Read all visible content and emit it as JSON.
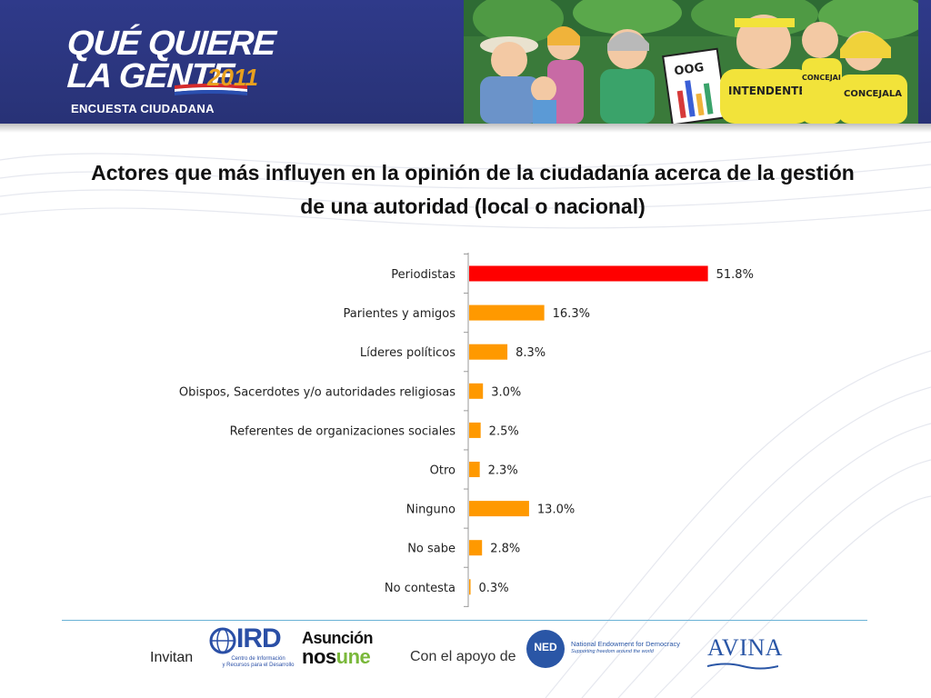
{
  "header": {
    "logo_line1": "QUÉ QUIERE",
    "logo_line2": "LA GENTE",
    "logo_year": "2011",
    "logo_subtitle": "ENCUESTA CIUDADANA",
    "cartoon_sign_left": "OOG",
    "cartoon_sign_mid": "INTENDENTE",
    "cartoon_sign_right": "CONCEJALA",
    "cartoon_sign_small": "CONCEJAL"
  },
  "title_line1": "Actores que más influyen en la opinión de la ciudadanía acerca de la gestión",
  "title_line2": "de una autoridad (local o nacional)",
  "chart_data": {
    "type": "bar",
    "orientation": "horizontal",
    "categories": [
      "Periodistas",
      "Parientes y amigos",
      "Líderes políticos",
      "Obispos, Sacerdotes y/o autoridades religiosas",
      "Referentes de organizaciones sociales",
      "Otro",
      "Ninguno",
      "No sabe",
      "No contesta"
    ],
    "values": [
      51.8,
      16.3,
      8.3,
      3.0,
      2.5,
      2.3,
      13.0,
      2.8,
      0.3
    ],
    "value_labels": [
      "51.8%",
      "16.3%",
      "8.3%",
      "3.0%",
      "2.5%",
      "2.3%",
      "13.0%",
      "2.8%",
      "0.3%"
    ],
    "xlim": [
      0,
      100
    ],
    "colors": {
      "highlight": "#ff0000",
      "default": "#ff9900"
    },
    "highlight_index": 0,
    "grid": false,
    "legend": "none"
  },
  "footer": {
    "invitan_label": "Invitan",
    "ird_name": "IRD",
    "ird_caption_1": "Centro de Información",
    "ird_caption_2": "y Recursos para el Desarrollo",
    "asuncion_line1": "Asunción",
    "asuncion_line2a": "nos",
    "asuncion_line2b": "une",
    "apoyo_label": "Con el apoyo de",
    "ned_badge": "NED",
    "ned_name": "National Endowment for Democracy",
    "ned_tagline": "Supporting freedom around the world",
    "avina_name": "AVINA"
  }
}
